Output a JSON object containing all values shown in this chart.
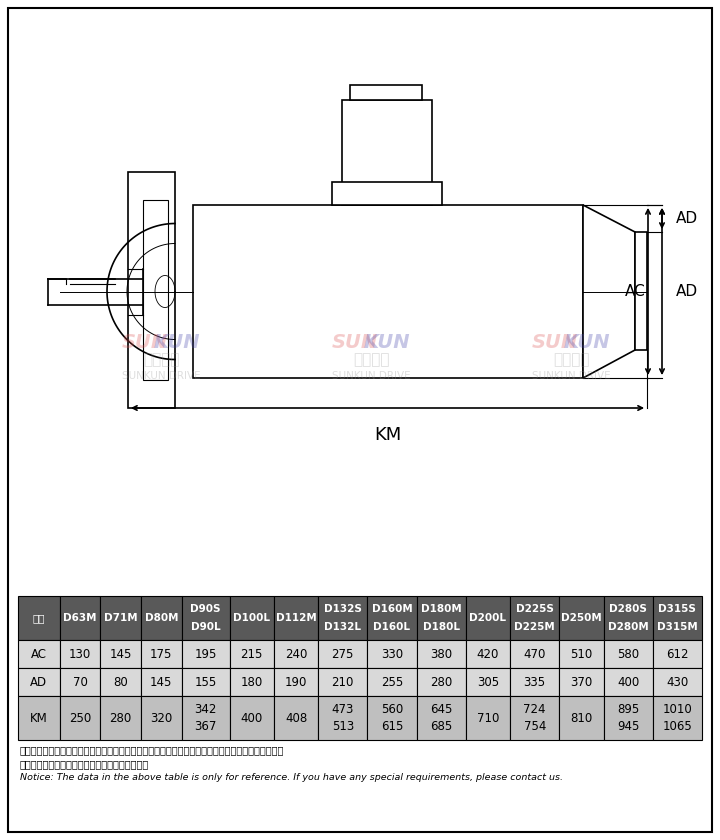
{
  "bg_color": "#ffffff",
  "table_header_bg": "#595959",
  "table_header_color": "#ffffff",
  "table_ac_bg": "#d9d9d9",
  "table_ad_bg": "#d9d9d9",
  "table_km_bg": "#bfbfbf",
  "col_headers": [
    "型号",
    "D63M",
    "D71M",
    "D80M",
    "D90S\nD90L",
    "D100L",
    "D112M",
    "D132S\nD132L",
    "D160M\nD160L",
    "D180M\nD180L",
    "D200L",
    "D225S\nD225M",
    "D250M",
    "D280S\nD280M",
    "D315S\nD315M"
  ],
  "row_AC": [
    "AC",
    "130",
    "145",
    "175",
    "195",
    "215",
    "240",
    "275",
    "330",
    "380",
    "420",
    "470",
    "510",
    "580",
    "612"
  ],
  "row_AD": [
    "AD",
    "70",
    "80",
    "145",
    "155",
    "180",
    "190",
    "210",
    "255",
    "280",
    "305",
    "335",
    "370",
    "400",
    "430"
  ],
  "row_KM": [
    "KM",
    "250",
    "280",
    "320",
    "342\n367",
    "400",
    "408",
    "473\n513",
    "560\n615",
    "645\n685",
    "710",
    "724\n754",
    "810",
    "895\n945",
    "1010\n1065"
  ],
  "note_cn1": "注：上表中的电机尺寸为部分铁芯长度电机的参考尺寸，具体尺寸根据铁芯长度与联接法兰尺寸确定，",
  "note_cn2": "因空间限制对电机尺寸有要求时请向我公司咨询。",
  "note_en": "Notice: The data in the above table is only for reference. If you have any special requirements, please contact us."
}
